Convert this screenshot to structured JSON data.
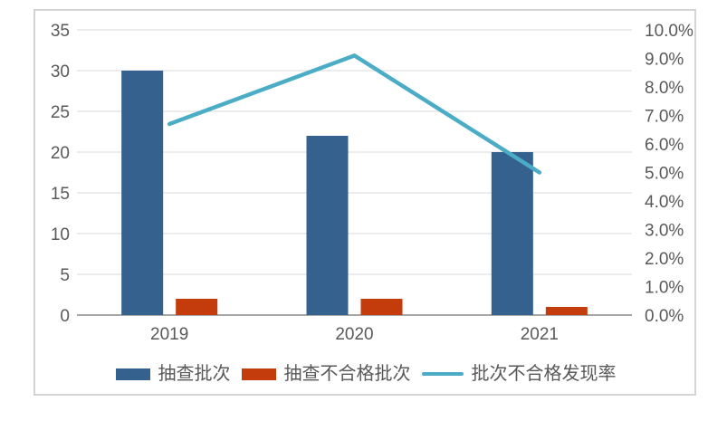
{
  "chart_data": {
    "type": "bar+line combo",
    "title": "",
    "categories": [
      "2019",
      "2020",
      "2021"
    ],
    "series": [
      {
        "name": "抽查批次",
        "type": "bar",
        "axis": "left",
        "color": "#35618f",
        "values": [
          30,
          22,
          20
        ]
      },
      {
        "name": "抽查不合格批次",
        "type": "bar",
        "axis": "left",
        "color": "#c43b0c",
        "values": [
          2,
          2,
          1
        ]
      },
      {
        "name": "批次不合格发现率",
        "type": "line",
        "axis": "right",
        "color": "#4bacc6",
        "values": [
          6.7,
          9.1,
          5.0
        ],
        "unit": "%"
      }
    ],
    "left_axis": {
      "min": 0,
      "max": 35,
      "step": 5,
      "tick_labels": [
        "0",
        "5",
        "10",
        "15",
        "20",
        "25",
        "30",
        "35"
      ]
    },
    "right_axis": {
      "min": 0,
      "max": 10,
      "step": 1,
      "tick_labels": [
        "0.0%",
        "1.0%",
        "2.0%",
        "3.0%",
        "4.0%",
        "5.0%",
        "6.0%",
        "7.0%",
        "8.0%",
        "9.0%",
        "10.0%"
      ]
    },
    "legend_position": "bottom",
    "grid": true
  },
  "colors": {
    "grid_line": "#d9d9d9",
    "axis_baseline": "#a6a6a6",
    "tick_text": "#595959",
    "frame_border": "#d4d4d4",
    "background": "#ffffff"
  }
}
